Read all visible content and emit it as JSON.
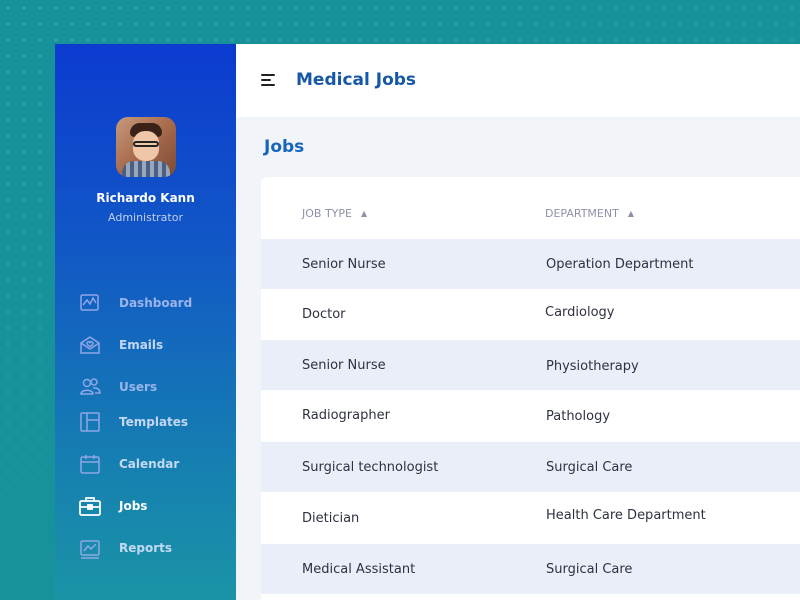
{
  "app": {
    "title": "Medical Jobs"
  },
  "user": {
    "name": "Richardo Kann",
    "role": "Administrator"
  },
  "sidebar": {
    "items": [
      {
        "label": "Dashboard",
        "icon": "dashboard-icon"
      },
      {
        "label": "Emails",
        "icon": "email-icon"
      },
      {
        "label": "Users",
        "icon": "users-icon"
      },
      {
        "label": "Templates",
        "icon": "templates-icon"
      },
      {
        "label": "Calendar",
        "icon": "calendar-icon"
      },
      {
        "label": "Jobs",
        "icon": "briefcase-icon",
        "active": true
      },
      {
        "label": "Reports",
        "icon": "reports-icon"
      }
    ]
  },
  "page": {
    "title": "Jobs"
  },
  "table": {
    "columns": [
      "JOB TYPE",
      "DEPARTMENT"
    ],
    "rows": [
      [
        "Senior Nurse",
        "Operation Department"
      ],
      [
        "Doctor",
        "Cardiology"
      ],
      [
        "Senior Nurse",
        "Physiotherapy"
      ],
      [
        "Radiographer",
        "Pathology"
      ],
      [
        "Surgical technologist",
        "Surgical Care"
      ],
      [
        "Dietician",
        "Health Care Department"
      ],
      [
        "Medical Assistant",
        "Surgical Care"
      ]
    ]
  },
  "colors": {
    "accent": "#1758a6",
    "sidebar_top": "#0c3bd0",
    "sidebar_bottom": "#1a94a6",
    "row_alt": "#e9eef8",
    "background": "#18929a"
  }
}
